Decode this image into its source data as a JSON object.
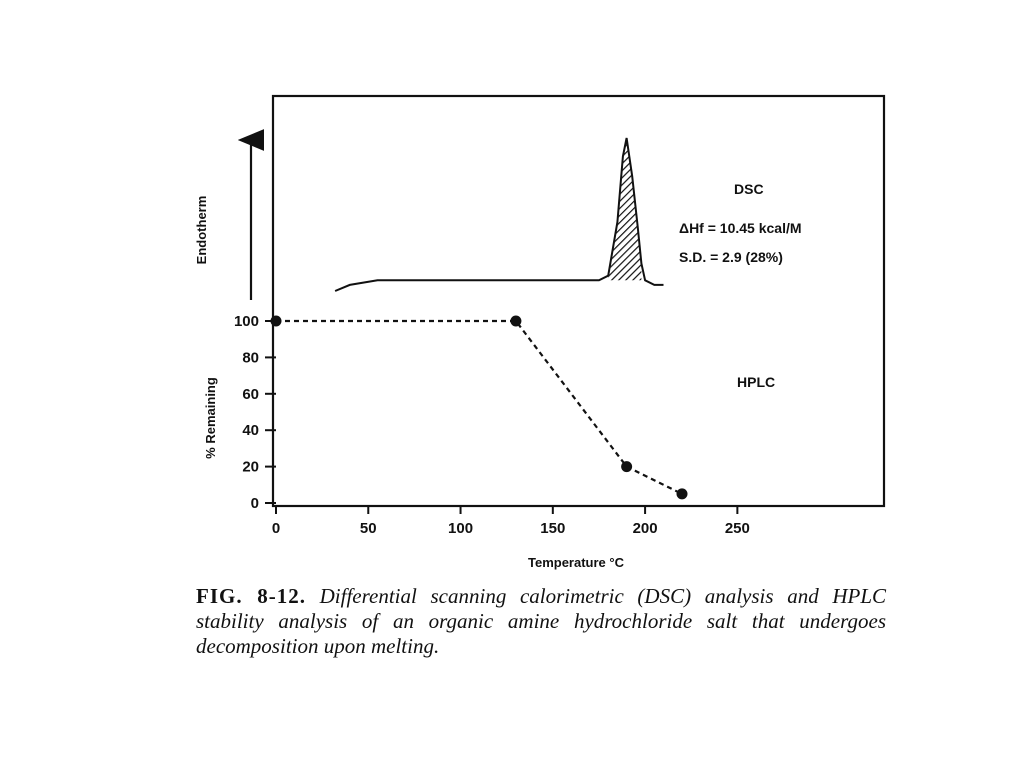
{
  "chart_data": [
    {
      "type": "area",
      "name": "dsc-panel",
      "title": "",
      "ylabel": "Endotherm",
      "annotations": {
        "label": "DSC",
        "enthalpy": "ΔHf = 10.45 kcal/M",
        "sd": "S.D. = 2.9 (28%)"
      },
      "x": [
        32,
        40,
        55,
        80,
        120,
        160,
        175,
        180,
        185,
        188,
        190,
        193,
        196,
        198,
        200,
        205,
        210
      ],
      "y": [
        0,
        0.04,
        0.07,
        0.07,
        0.07,
        0.07,
        0.07,
        0.1,
        0.45,
        0.88,
        1.0,
        0.75,
        0.42,
        0.18,
        0.07,
        0.04,
        0.04
      ],
      "shaded_region": [
        180,
        198
      ],
      "xlim": [
        0,
        330
      ],
      "grid": false
    },
    {
      "type": "line",
      "name": "hplc-panel",
      "ylabel": "% Remaining",
      "xlabel": "Temperature °C",
      "label": "HPLC",
      "series": [
        {
          "name": "",
          "x": [
            0,
            130,
            190,
            220
          ],
          "y": [
            100,
            100,
            20,
            5
          ]
        }
      ],
      "xticks": [
        "0",
        "50",
        "100",
        "150",
        "200",
        "250"
      ],
      "yticks": [
        "0",
        "20",
        "40",
        "60",
        "80",
        "100"
      ],
      "xlim": [
        0,
        330
      ],
      "ylim": [
        0,
        100
      ],
      "grid": false
    }
  ],
  "caption": {
    "label": "FIG. 8-12.",
    "text": "Differential scanning calorimetric (DSC) analysis and HPLC stability analysis of an organic amine hydrochloride salt that undergoes decomposition upon melting."
  }
}
